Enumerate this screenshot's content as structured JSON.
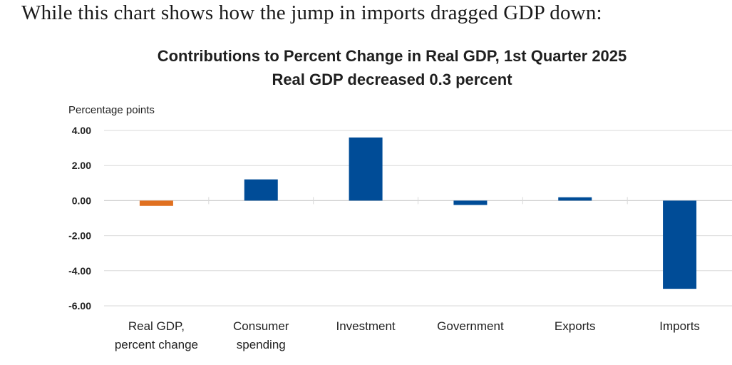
{
  "intro_text": "While this chart shows how the jump in imports dragged GDP down:",
  "chart_data": {
    "type": "bar",
    "title": "Contributions to Percent Change in Real GDP, 1st Quarter 2025",
    "subtitle": "Real GDP decreased 0.3 percent",
    "ylabel": "Percentage points",
    "xlabel": "",
    "ylim": [
      -6,
      4
    ],
    "yticks": [
      "4.00",
      "2.00",
      "0.00",
      "-2.00",
      "-4.00",
      "-6.00"
    ],
    "ytick_values": [
      4,
      2,
      0,
      -2,
      -4,
      -6
    ],
    "grid": true,
    "categories": [
      [
        "Real GDP,",
        "percent change"
      ],
      [
        "Consumer",
        "spending"
      ],
      [
        "Investment"
      ],
      [
        "Government"
      ],
      [
        "Exports"
      ],
      [
        "Imports"
      ]
    ],
    "values": [
      -0.3,
      1.21,
      3.6,
      -0.25,
      0.19,
      -5.03
    ],
    "colors": [
      "#E07020",
      "#004C97",
      "#004C97",
      "#004C97",
      "#004C97",
      "#004C97"
    ]
  }
}
